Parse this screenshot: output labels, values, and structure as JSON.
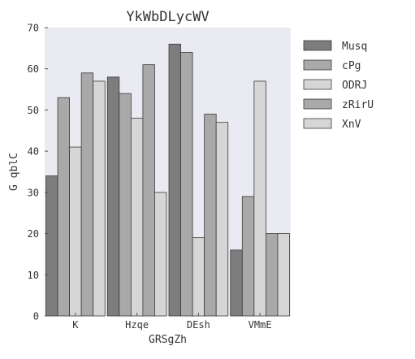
{
  "chart_data": {
    "type": "bar",
    "title": "YkWbDLycWV",
    "xlabel": "GRSgZh",
    "ylabel": "G qblC",
    "categories": [
      "K",
      "Hzqe",
      "DEsh",
      "VMmE"
    ],
    "ylim": [
      0,
      70
    ],
    "yticks": [
      0,
      10,
      20,
      30,
      40,
      50,
      60,
      70
    ],
    "grid": false,
    "legend_position": "right",
    "background_color": "#eaeaf2",
    "series": [
      {
        "name": "Musq",
        "color": "#7d7d7d",
        "values": [
          34,
          58,
          66,
          16
        ]
      },
      {
        "name": "cPg",
        "color": "#a9a9a9",
        "values": [
          53,
          54,
          64,
          29
        ]
      },
      {
        "name": "ODRJ",
        "color": "#d6d6d6",
        "values": [
          41,
          48,
          19,
          57
        ]
      },
      {
        "name": "zRirU",
        "color": "#a9a9a9",
        "values": [
          59,
          61,
          49,
          20
        ]
      },
      {
        "name": "XnV",
        "color": "#d6d6d6",
        "values": [
          57,
          30,
          47,
          20
        ]
      }
    ]
  }
}
